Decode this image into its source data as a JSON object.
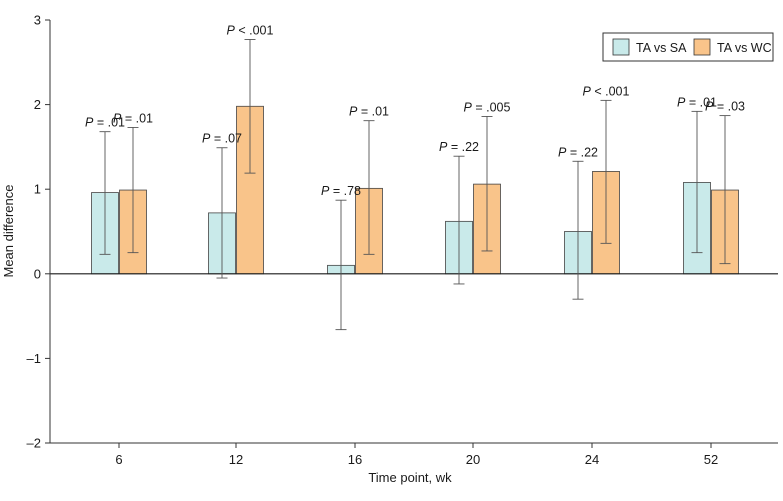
{
  "chart_data": {
    "type": "bar",
    "title": "",
    "xlabel": "Time point, wk",
    "ylabel": "Mean difference",
    "categories": [
      "6",
      "12",
      "16",
      "20",
      "24",
      "52"
    ],
    "ylim": [
      -2,
      3
    ],
    "yticks": [
      -2,
      -1,
      0,
      1,
      2,
      3
    ],
    "ytick_labels": [
      "–2",
      "–1",
      "0",
      "1",
      "2",
      "3"
    ],
    "legend_position": "top-right",
    "series": [
      {
        "name": "TA vs SA",
        "color": "#c9eaea",
        "values": [
          0.96,
          0.72,
          0.1,
          0.62,
          0.5,
          1.08
        ],
        "ci_low": [
          0.23,
          -0.05,
          -0.66,
          -0.12,
          -0.3,
          0.25
        ],
        "ci_high": [
          1.68,
          1.49,
          0.87,
          1.39,
          1.33,
          1.92
        ],
        "p_values": [
          "P = .01",
          "P = .07",
          "P = .78",
          "P = .22",
          "P = .22",
          "P = .01"
        ]
      },
      {
        "name": "TA vs WC",
        "color": "#f9c48a",
        "values": [
          0.99,
          1.98,
          1.01,
          1.06,
          1.21,
          0.99
        ],
        "ci_low": [
          0.25,
          1.19,
          0.23,
          0.27,
          0.36,
          0.12
        ],
        "ci_high": [
          1.73,
          2.77,
          1.81,
          1.86,
          2.05,
          1.87
        ],
        "p_values": [
          "P = .01",
          "P < .001",
          "P = .01",
          "P = .005",
          "P < .001",
          "P = .03"
        ]
      }
    ]
  }
}
